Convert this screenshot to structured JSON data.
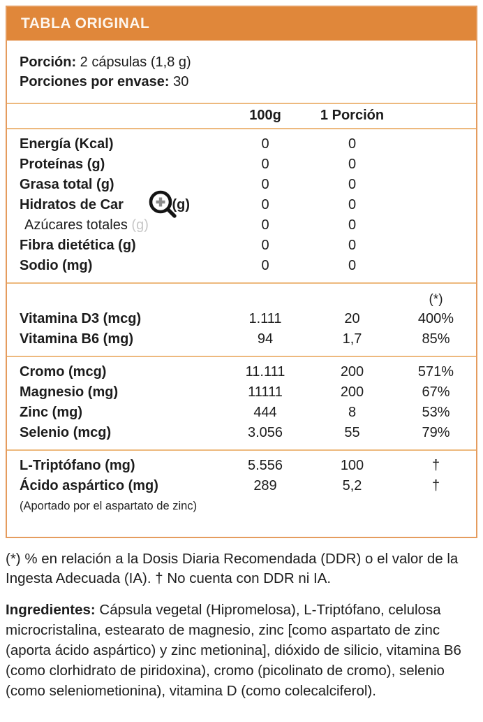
{
  "colors": {
    "header_orange": "#e0873a",
    "border_orange": "#e59c5e",
    "divider_tan": "#edb97e",
    "text": "#1c1c1c"
  },
  "table": {
    "title": "TABLA ORIGINAL",
    "serving": [
      {
        "label": "Porción:",
        "value": " 2 cápsulas (1,8 g)"
      },
      {
        "label": "Porciones por envase:",
        "value": " 30"
      }
    ],
    "column_headers": {
      "per_100g": "100g",
      "per_serving": "1 Porción",
      "pct_mark": "(*)"
    },
    "sections": [
      {
        "rows": [
          {
            "label": "Energía (Kcal)",
            "v100": "0",
            "vserv": "0",
            "pct": ""
          },
          {
            "label": "Proteínas (g)",
            "v100": "0",
            "vserv": "0",
            "pct": ""
          },
          {
            "label": "Grasa total (g)",
            "v100": "0",
            "vserv": "0",
            "pct": ""
          },
          {
            "label": "Hidratos de Car",
            "suffix": "(g)",
            "icon_gap": true,
            "v100": "0",
            "vserv": "0",
            "pct": ""
          },
          {
            "label": "Azúcares totales",
            "suffix": "(g)",
            "light": true,
            "ghost_suffix": true,
            "v100": "0",
            "vserv": "0",
            "pct": ""
          },
          {
            "label": "Fibra dietética (g)",
            "v100": "0",
            "vserv": "0",
            "pct": ""
          },
          {
            "label": "Sodio (mg)",
            "v100": "0",
            "vserv": "0",
            "pct": ""
          }
        ]
      },
      {
        "pct_header": "(*)",
        "rows": [
          {
            "label": "Vitamina D3 (mcg)",
            "v100": "1.111",
            "vserv": "20",
            "pct": "400%"
          },
          {
            "label": "Vitamina B6 (mg)",
            "v100": "94",
            "vserv": "1,7",
            "pct": "85%"
          }
        ]
      },
      {
        "rows": [
          {
            "label": "Cromo (mcg)",
            "v100": "11.111",
            "vserv": "200",
            "pct": "571%"
          },
          {
            "label": "Magnesio (mg)",
            "v100": "11111",
            "vserv": "200",
            "pct": "67%"
          },
          {
            "label": "Zinc (mg)",
            "v100": "444",
            "vserv": "8",
            "pct": "53%"
          },
          {
            "label": "Selenio (mcg)",
            "v100": "3.056",
            "vserv": "55",
            "pct": "79%"
          }
        ]
      },
      {
        "rows": [
          {
            "label": "L-Triptófano (mg)",
            "v100": "5.556",
            "vserv": "100",
            "pct": "†"
          },
          {
            "label": "Ácido aspártico (mg)",
            "v100": "289",
            "vserv": "5,2",
            "pct": "†"
          }
        ],
        "note": "(Aportado por el aspartato de zinc)"
      }
    ]
  },
  "icons": {
    "zoom_cursor": "magnifier-plus-icon"
  },
  "footnotes": {
    "ddr": "(*) % en relación a la Dosis Diaria Recomendada (DDR) o el valor de la Ingesta Adecuada (IA). † No cuenta con DDR ni IA.",
    "ingredients_label": "Ingredientes:",
    "ingredients_text": " Cápsula vegetal (Hipromelosa), L-Triptófano, celulosa microcristalina, estearato de magnesio, zinc [como aspartato de zinc (aporta ácido aspártico) y zinc metionina], dióxido de silicio, vitamina B6 (como clorhidrato de piridoxina), cromo (picolinato de cromo), selenio (como seleniometionina), vitamina D (como colecalciferol)."
  }
}
